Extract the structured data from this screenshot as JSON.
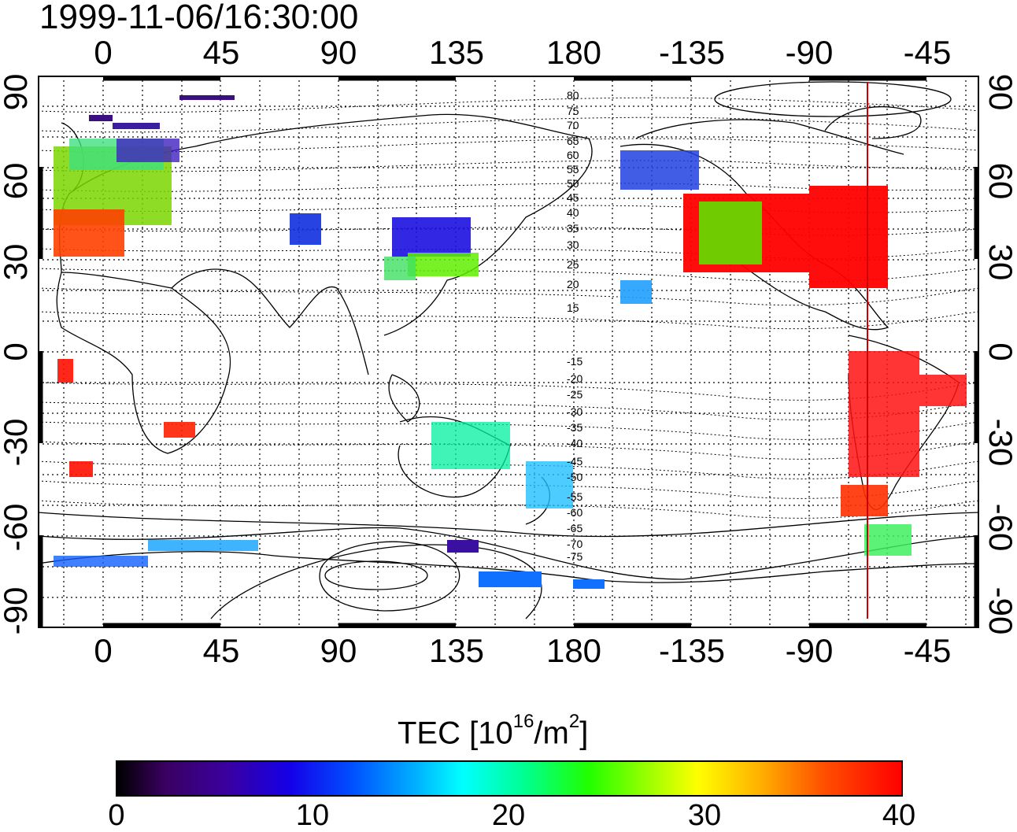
{
  "timestamp": "1999-11-06/16:30:00",
  "axes": {
    "lon_top": [
      "0",
      "45",
      "90",
      "135",
      "180",
      "-135",
      "-90",
      "-45"
    ],
    "lon_bottom": [
      "0",
      "45",
      "90",
      "135",
      "180",
      "-135",
      "-90",
      "-45"
    ],
    "lat_left": [
      "90",
      "60",
      "30",
      "0",
      "-30",
      "-60",
      "-90"
    ],
    "lat_right": [
      "90",
      "60",
      "30",
      "0",
      "-30",
      "-60",
      "-90"
    ]
  },
  "contour_labels": [
    "80",
    "75",
    "70",
    "65",
    "60",
    "55",
    "50",
    "45",
    "40",
    "35",
    "30",
    "25",
    "20",
    "15",
    "-15",
    "-20",
    "-25",
    "-30",
    "-35",
    "-40",
    "-45",
    "-50",
    "-55",
    "-60",
    "-65",
    "-70",
    "-75"
  ],
  "colorbar": {
    "title": "TEC  [10",
    "title_exp": "16",
    "title_mid": "/m",
    "title_exp2": "2",
    "title_end": "]",
    "ticks": [
      "0",
      "10",
      "20",
      "30",
      "40"
    ],
    "range": [
      0,
      40
    ]
  },
  "colors": {
    "high_tec": "#ff0000",
    "marker_line": "#cc0000"
  }
}
